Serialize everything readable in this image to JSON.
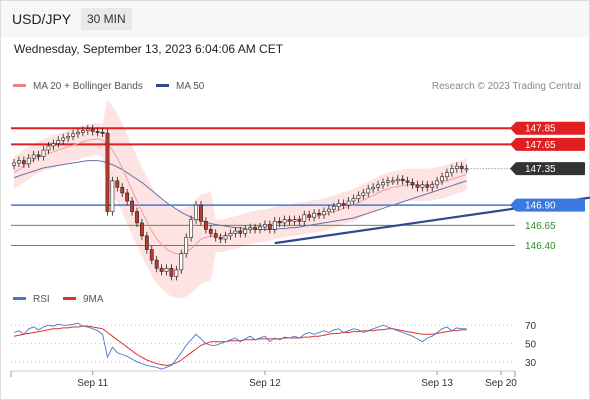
{
  "header": {
    "symbol": "USD/JPY",
    "timeframe": "30 MIN"
  },
  "datetime": "Wednesday, September 13, 2023 6:04:06 AM CET",
  "legend": {
    "ma20": {
      "label": "MA 20 + Bollinger Bands",
      "color": "#f08080"
    },
    "ma50": {
      "label": "MA 50",
      "color": "#2e4a8c"
    }
  },
  "credit": "Research © 2023 Trading Central",
  "rsi_legend": {
    "rsi": {
      "label": "RSI",
      "color": "#4a78c8"
    },
    "ma9": {
      "label": "9MA",
      "color": "#e03030"
    }
  },
  "colors": {
    "resistance": "#e02020",
    "support_blue": "#3a7ae0",
    "support_green": "#2e8b2e",
    "current": "#333333",
    "trend": "#2e4a8c",
    "band": "#fde0de"
  },
  "chart_data": {
    "type": "candlestick",
    "x_ticks": [
      "Sep 11",
      "Sep 12",
      "Sep 13",
      "Sep 20"
    ],
    "y_range": [
      145.95,
      148.05
    ],
    "levels": [
      {
        "value": 147.85,
        "label": "147.85",
        "kind": "resistance"
      },
      {
        "value": 147.65,
        "label": "147.65",
        "kind": "resistance"
      },
      {
        "value": 147.35,
        "label": "147.35",
        "kind": "current"
      },
      {
        "value": 146.9,
        "label": "146.90",
        "kind": "support-pivot"
      },
      {
        "value": 146.65,
        "label": "146.65",
        "kind": "support"
      },
      {
        "value": 146.4,
        "label": "146.40",
        "kind": "support"
      }
    ],
    "closes": [
      147.42,
      147.45,
      147.41,
      147.48,
      147.52,
      147.5,
      147.58,
      147.63,
      147.66,
      147.7,
      147.73,
      147.75,
      147.78,
      147.8,
      147.82,
      147.84,
      147.81,
      147.8,
      147.79,
      146.82,
      147.2,
      147.12,
      147.05,
      146.95,
      146.82,
      146.68,
      146.52,
      146.35,
      146.22,
      146.12,
      146.08,
      146.12,
      146.02,
      146.1,
      146.3,
      146.5,
      146.72,
      146.9,
      146.7,
      146.6,
      146.55,
      146.5,
      146.48,
      146.52,
      146.55,
      146.58,
      146.55,
      146.6,
      146.62,
      146.6,
      146.63,
      146.66,
      146.6,
      146.7,
      146.68,
      146.72,
      146.7,
      146.72,
      146.7,
      146.78,
      146.75,
      146.8,
      146.78,
      146.82,
      146.85,
      146.88,
      146.92,
      146.9,
      146.95,
      146.98,
      147.02,
      147.05,
      147.1,
      147.12,
      147.15,
      147.18,
      147.2,
      147.2,
      147.22,
      147.2,
      147.18,
      147.15,
      147.12,
      147.15,
      147.12,
      147.15,
      147.2,
      147.25,
      147.3,
      147.35,
      147.38,
      147.35,
      147.35
    ],
    "ma20": [
      147.3,
      147.34,
      147.38,
      147.42,
      147.46,
      147.49,
      147.52,
      147.54,
      147.56,
      147.58,
      147.6,
      147.62,
      147.64,
      147.66,
      147.68,
      147.7,
      147.71,
      147.72,
      147.7,
      147.65,
      147.58,
      147.48,
      147.36,
      147.22,
      147.08,
      146.95,
      146.82,
      146.7,
      146.58,
      146.48,
      146.42,
      146.36,
      146.32,
      146.3,
      146.3,
      146.32,
      146.36,
      146.42,
      146.48,
      146.5,
      146.52,
      146.52,
      146.52,
      146.53,
      146.55,
      146.56,
      146.58,
      146.6,
      146.62,
      146.63,
      146.64,
      146.65,
      146.66,
      146.68,
      146.69,
      146.7,
      146.71,
      146.72,
      146.73,
      146.74,
      146.75,
      146.76,
      146.77,
      146.78,
      146.8,
      146.82,
      146.84,
      146.86,
      146.88,
      146.9,
      146.93,
      146.96,
      146.99,
      147.02,
      147.05,
      147.08,
      147.1,
      147.12,
      147.13,
      147.14,
      147.15,
      147.15,
      147.15,
      147.15,
      147.15,
      147.16,
      147.17,
      147.18,
      147.2,
      147.22,
      147.24,
      147.26,
      147.28
    ],
    "ma50": [
      147.24,
      147.26,
      147.28,
      147.3,
      147.32,
      147.34,
      147.36,
      147.37,
      147.38,
      147.39,
      147.4,
      147.41,
      147.42,
      147.43,
      147.44,
      147.45,
      147.45,
      147.45,
      147.44,
      147.42,
      147.4,
      147.37,
      147.34,
      147.3,
      147.26,
      147.22,
      147.18,
      147.13,
      147.08,
      147.03,
      146.98,
      146.93,
      146.89,
      146.85,
      146.81,
      146.78,
      146.75,
      146.73,
      146.71,
      146.69,
      146.67,
      146.66,
      146.65,
      146.64,
      146.63,
      146.62,
      146.62,
      146.61,
      146.61,
      146.6,
      146.6,
      146.6,
      146.6,
      146.6,
      146.61,
      146.61,
      146.62,
      146.62,
      146.63,
      146.64,
      146.65,
      146.66,
      146.67,
      146.68,
      146.69,
      146.7,
      146.71,
      146.72,
      146.73,
      146.74,
      146.76,
      146.78,
      146.8,
      146.82,
      146.84,
      146.86,
      146.88,
      146.9,
      146.92,
      146.94,
      146.96,
      146.98,
      147.0,
      147.02,
      147.04,
      147.06,
      147.08,
      147.1,
      147.12,
      147.14,
      147.16,
      147.18,
      147.2
    ],
    "trendline": [
      [
        53,
        146.43
      ],
      [
        126,
        147.07
      ]
    ],
    "projection": [
      [
        129,
        147.35
      ],
      [
        141,
        147.85
      ]
    ],
    "rsi": {
      "ticks": [
        70,
        50,
        30
      ],
      "range": [
        20,
        80
      ],
      "rsi": [
        62,
        64,
        60,
        66,
        68,
        65,
        68,
        70,
        69,
        71,
        70,
        70,
        71,
        72,
        69,
        68,
        66,
        64,
        60,
        35,
        46,
        40,
        38,
        36,
        33,
        30,
        28,
        26,
        25,
        24,
        22,
        24,
        26,
        33,
        40,
        48,
        54,
        60,
        55,
        50,
        48,
        48,
        50,
        52,
        54,
        56,
        52,
        55,
        58,
        54,
        56,
        58,
        52,
        56,
        54,
        57,
        56,
        58,
        56,
        60,
        62,
        60,
        62,
        64,
        62,
        65,
        66,
        62,
        64,
        66,
        65,
        62,
        64,
        66,
        68,
        70,
        68,
        66,
        64,
        62,
        60,
        58,
        55,
        52,
        56,
        58,
        62,
        66,
        68,
        64,
        67,
        66,
        66
      ],
      "ma9": [
        58,
        59,
        60,
        61,
        62,
        63,
        64,
        65,
        66,
        66,
        67,
        67,
        68,
        68,
        69,
        69,
        68,
        67,
        66,
        62,
        58,
        54,
        50,
        46,
        42,
        38,
        35,
        32,
        30,
        28,
        27,
        26,
        27,
        29,
        32,
        36,
        40,
        44,
        48,
        50,
        52,
        52,
        52,
        52,
        53,
        53,
        53,
        54,
        54,
        54,
        55,
        55,
        55,
        55,
        55,
        56,
        56,
        56,
        56,
        57,
        57,
        58,
        58,
        59,
        60,
        61,
        61,
        62,
        62,
        63,
        63,
        64,
        64,
        64,
        65,
        65,
        66,
        66,
        65,
        64,
        63,
        62,
        61,
        60,
        60,
        60,
        61,
        62,
        63,
        64,
        64,
        65,
        65
      ]
    }
  }
}
